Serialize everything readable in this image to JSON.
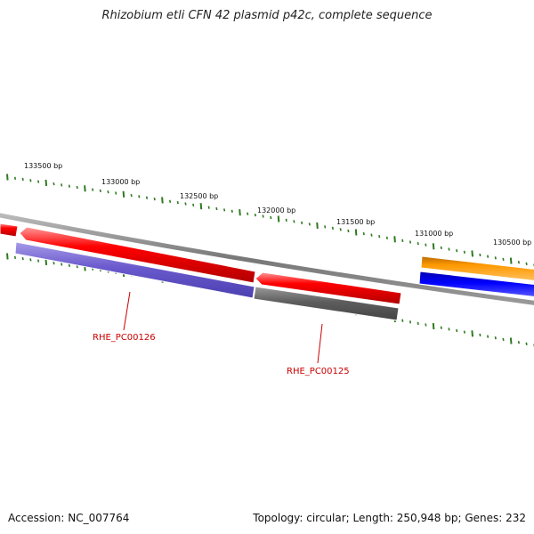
{
  "title": "Rhizobium etli CFN 42 plasmid p42c, complete sequence",
  "footer": {
    "accession": "Accession: NC_007764",
    "summary": "Topology: circular; Length: 250,948 bp; Genes: 232"
  },
  "colors": {
    "backbone": "#8a8a8a",
    "tick": "#2f7a1f",
    "forward_gene": "#ff0000",
    "reverse_gene_1": "#6a5acd",
    "reverse_gene_2": "#666666",
    "orange_gene": "#ff9900",
    "blue_gene": "#0000ff",
    "label": "#cc0000"
  },
  "ruler_labels": [
    "133500 bp",
    "133000 bp",
    "132500 bp",
    "132000 bp",
    "131500 bp",
    "131000 bp",
    "130500 bp"
  ],
  "gene_labels": [
    "RHE_PC00126",
    "RHE_PC00125"
  ]
}
